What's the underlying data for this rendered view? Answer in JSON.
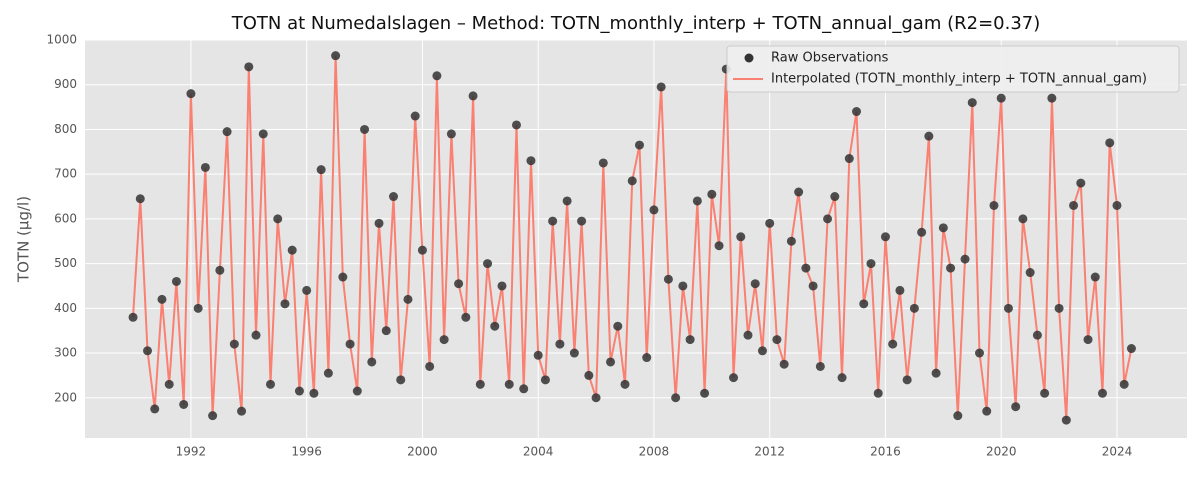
{
  "chart_data": {
    "type": "scatter+line",
    "title": "TOTN at Numedalslagen – Method: TOTN_monthly_interp + TOTN_annual_gam (R2=0.37)",
    "ylabel": "TOTN (µg/l)",
    "x": [
      1990,
      1990.25,
      1990.5,
      1990.75,
      1991,
      1991.25,
      1991.5,
      1991.75,
      1992,
      1992.25,
      1992.5,
      1992.75,
      1993,
      1993.25,
      1993.5,
      1993.75,
      1994,
      1994.25,
      1994.5,
      1994.75,
      1995,
      1995.25,
      1995.5,
      1995.75,
      1996,
      1996.25,
      1996.5,
      1996.75,
      1997,
      1997.25,
      1997.5,
      1997.75,
      1998,
      1998.25,
      1998.5,
      1998.75,
      1999,
      1999.25,
      1999.5,
      1999.75,
      2000,
      2000.25,
      2000.5,
      2000.75,
      2001,
      2001.25,
      2001.5,
      2001.75,
      2002,
      2002.25,
      2002.5,
      2002.75,
      2003,
      2003.25,
      2003.5,
      2003.75,
      2004,
      2004.25,
      2004.5,
      2004.75,
      2005,
      2005.25,
      2005.5,
      2005.75,
      2006,
      2006.25,
      2006.5,
      2006.75,
      2007,
      2007.25,
      2007.5,
      2007.75,
      2008,
      2008.25,
      2008.5,
      2008.75,
      2009,
      2009.25,
      2009.5,
      2009.75,
      2010,
      2010.25,
      2010.5,
      2010.75,
      2011,
      2011.25,
      2011.5,
      2011.75,
      2012,
      2012.25,
      2012.5,
      2012.75,
      2013,
      2013.25,
      2013.5,
      2013.75,
      2014,
      2014.25,
      2014.5,
      2014.75,
      2015,
      2015.25,
      2015.5,
      2015.75,
      2016,
      2016.25,
      2016.5,
      2016.75,
      2017,
      2017.25,
      2017.5,
      2017.75,
      2018,
      2018.25,
      2018.5,
      2018.75,
      2019,
      2019.25,
      2019.5,
      2019.75,
      2020,
      2020.25,
      2020.5,
      2020.75,
      2021,
      2021.25,
      2021.5,
      2021.75,
      2022,
      2022.25,
      2022.5,
      2022.75,
      2023,
      2023.25,
      2023.5,
      2023.75,
      2024,
      2024.25,
      2024.5
    ],
    "series": [
      {
        "name": "Raw Observations",
        "color": "#333333",
        "marker": "point",
        "values": [
          380,
          645,
          305,
          175,
          420,
          230,
          460,
          185,
          880,
          400,
          715,
          160,
          485,
          795,
          320,
          170,
          940,
          340,
          790,
          230,
          600,
          410,
          530,
          215,
          440,
          210,
          710,
          255,
          965,
          470,
          320,
          215,
          800,
          280,
          590,
          350,
          650,
          240,
          420,
          830,
          530,
          270,
          920,
          330,
          790,
          455,
          380,
          875,
          230,
          500,
          360,
          450,
          230,
          810,
          220,
          730,
          295,
          240,
          595,
          320,
          640,
          300,
          595,
          250,
          200,
          725,
          280,
          360,
          230,
          685,
          765,
          290,
          620,
          895,
          465,
          200,
          450,
          330,
          640,
          210,
          655,
          540,
          935,
          245,
          560,
          340,
          455,
          305,
          590,
          330,
          275,
          550,
          660,
          490,
          450,
          270,
          600,
          650,
          245,
          735,
          840,
          410,
          500,
          210,
          560,
          320,
          440,
          240,
          400,
          570,
          785,
          255,
          580,
          490,
          160,
          510,
          860,
          300,
          170,
          630,
          870,
          400,
          180,
          600,
          480,
          340,
          210,
          870,
          400,
          150,
          630,
          680,
          330,
          470,
          210,
          770,
          630,
          230,
          310
        ]
      },
      {
        "name": "Interpolated (TOTN_monthly_interp + TOTN_annual_gam)",
        "color": "#fa8072",
        "marker": "line",
        "values": [
          380,
          645,
          305,
          175,
          420,
          230,
          460,
          185,
          880,
          400,
          715,
          160,
          485,
          795,
          320,
          170,
          940,
          340,
          790,
          230,
          600,
          410,
          530,
          215,
          440,
          210,
          710,
          255,
          965,
          470,
          320,
          215,
          800,
          280,
          590,
          350,
          650,
          240,
          420,
          830,
          530,
          270,
          920,
          330,
          790,
          455,
          380,
          875,
          230,
          500,
          360,
          450,
          230,
          810,
          220,
          730,
          295,
          240,
          595,
          320,
          640,
          300,
          595,
          250,
          200,
          725,
          280,
          360,
          230,
          685,
          765,
          290,
          620,
          895,
          465,
          200,
          450,
          330,
          640,
          210,
          655,
          540,
          935,
          245,
          560,
          340,
          455,
          305,
          590,
          330,
          275,
          550,
          660,
          490,
          450,
          270,
          600,
          650,
          245,
          735,
          840,
          410,
          500,
          210,
          560,
          320,
          440,
          240,
          400,
          570,
          785,
          255,
          580,
          490,
          160,
          510,
          860,
          300,
          170,
          630,
          870,
          400,
          180,
          600,
          480,
          340,
          210,
          870,
          400,
          150,
          630,
          680,
          330,
          470,
          210,
          770,
          630,
          230,
          310
        ]
      }
    ],
    "xlim": [
      1988.34,
      2026.42
    ],
    "xticks": [
      1992,
      1996,
      2000,
      2004,
      2008,
      2012,
      2016,
      2020,
      2024
    ],
    "ylim": [
      110,
      1000
    ],
    "yticks": [
      200,
      300,
      400,
      500,
      600,
      700,
      800,
      900,
      1000
    ],
    "grid": true,
    "legend": "upper right"
  }
}
